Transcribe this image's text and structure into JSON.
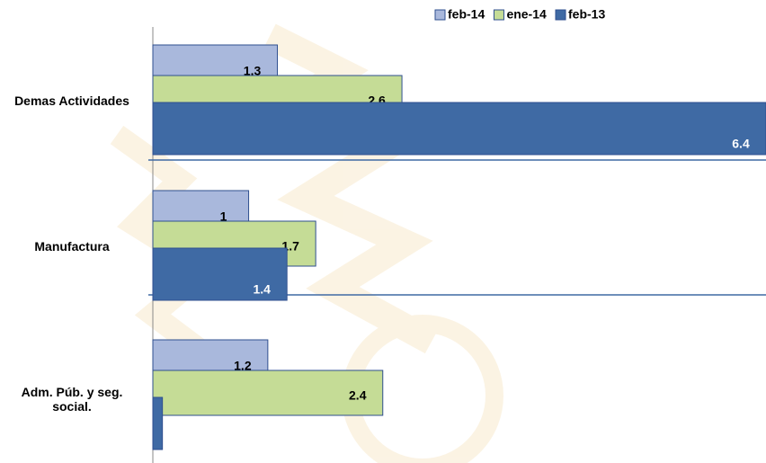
{
  "chart_data": {
    "type": "bar",
    "orientation": "horizontal",
    "categories": [
      "Demas Actividades",
      "Manufactura",
      "Adm. Púb. y seg. social."
    ],
    "series": [
      {
        "name": "feb-14",
        "color": "#a9b8dc",
        "values": [
          1.3,
          1.0,
          1.2
        ]
      },
      {
        "name": "ene-14",
        "color": "#c5dc96",
        "values": [
          2.6,
          1.7,
          2.4
        ]
      },
      {
        "name": "feb-13",
        "color": "#3f6aa4",
        "values": [
          6.4,
          1.4,
          0.1
        ]
      }
    ],
    "legend": "top"
  }
}
